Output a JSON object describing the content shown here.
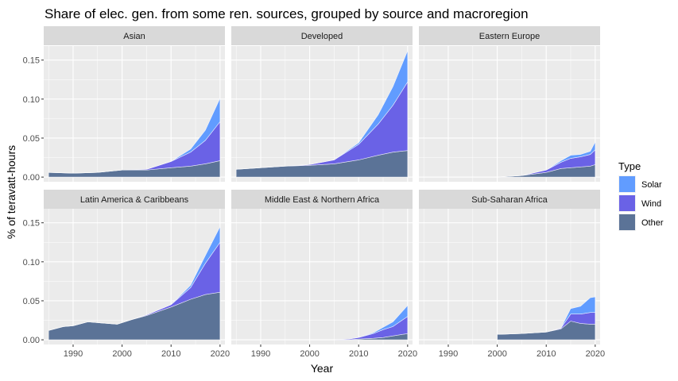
{
  "chart_data": {
    "type": "area",
    "title": "Share of elec. gen. from some ren. sources, grouped by source and macroregion",
    "xlabel": "Year",
    "ylabel": "% of teravatt-hours",
    "xlim": [
      1984,
      2021
    ],
    "ylim": [
      -0.006,
      0.168
    ],
    "x_ticks": [
      1990,
      2000,
      2010,
      2020
    ],
    "y_ticks": [
      0.0,
      0.05,
      0.1,
      0.15
    ],
    "y_tick_labels": [
      "0.00",
      "0.05",
      "0.10",
      "0.15"
    ],
    "stacked": true,
    "grid": true,
    "legend": {
      "title": "Type",
      "position": "right",
      "entries": [
        {
          "name": "Solar",
          "color": "#619CFF"
        },
        {
          "name": "Wind",
          "color": "#6A62E6"
        },
        {
          "name": "Other",
          "color": "#5B7397"
        }
      ]
    },
    "colors": {
      "Solar": "#619CFF",
      "Wind": "#6A62E6",
      "Other": "#5B7397",
      "panel_bg": "#EBEBEB",
      "strip_bg": "#D9D9D9"
    },
    "panels": [
      {
        "name": "Asian",
        "x": [
          1985,
          1990,
          1995,
          2000,
          2005,
          2010,
          2014,
          2017,
          2020
        ],
        "series": [
          {
            "name": "Other",
            "values": [
              0.006,
              0.005,
              0.006,
              0.009,
              0.009,
              0.012,
              0.014,
              0.017,
              0.021
            ]
          },
          {
            "name": "Wind",
            "values": [
              0,
              0,
              0,
              0,
              0.001,
              0.008,
              0.018,
              0.03,
              0.05
            ]
          },
          {
            "name": "Solar",
            "values": [
              0,
              0,
              0,
              0,
              0,
              0,
              0.004,
              0.013,
              0.03
            ]
          }
        ]
      },
      {
        "name": "Developed",
        "x": [
          1985,
          1990,
          1995,
          2000,
          2005,
          2010,
          2014,
          2017,
          2020
        ],
        "series": [
          {
            "name": "Other",
            "values": [
              0.01,
              0.012,
              0.014,
              0.015,
              0.017,
              0.022,
              0.028,
              0.032,
              0.034
            ]
          },
          {
            "name": "Wind",
            "values": [
              0,
              0,
              0,
              0.001,
              0.005,
              0.02,
              0.04,
              0.06,
              0.088
            ]
          },
          {
            "name": "Solar",
            "values": [
              0,
              0,
              0,
              0,
              0,
              0.002,
              0.012,
              0.024,
              0.04
            ]
          }
        ]
      },
      {
        "name": "Eastern Europe",
        "x": [
          2000,
          2005,
          2010,
          2013,
          2015,
          2017,
          2019,
          2020
        ],
        "series": [
          {
            "name": "Other",
            "values": [
              0,
              0.002,
              0.006,
              0.011,
              0.012,
              0.013,
              0.014,
              0.016
            ]
          },
          {
            "name": "Wind",
            "values": [
              0,
              0,
              0.003,
              0.008,
              0.012,
              0.013,
              0.015,
              0.019
            ]
          },
          {
            "name": "Solar",
            "values": [
              0,
              0,
              0,
              0.002,
              0.004,
              0.003,
              0.004,
              0.01
            ]
          }
        ]
      },
      {
        "name": "Latin America & Caribbeans",
        "x": [
          1985,
          1988,
          1990,
          1993,
          1995,
          1999,
          2002,
          2005,
          2010,
          2014,
          2017,
          2020
        ],
        "series": [
          {
            "name": "Other",
            "values": [
              0.012,
              0.017,
              0.018,
              0.023,
              0.022,
              0.02,
              0.026,
              0.031,
              0.042,
              0.052,
              0.058,
              0.061
            ]
          },
          {
            "name": "Wind",
            "values": [
              0,
              0,
              0,
              0,
              0,
              0,
              0,
              0.001,
              0.003,
              0.015,
              0.04,
              0.064
            ]
          },
          {
            "name": "Solar",
            "values": [
              0,
              0,
              0,
              0,
              0,
              0,
              0,
              0,
              0,
              0.003,
              0.01,
              0.02
            ]
          }
        ]
      },
      {
        "name": "Middle East & Northern Africa",
        "x": [
          2005,
          2008,
          2010,
          2013,
          2015,
          2017,
          2020
        ],
        "series": [
          {
            "name": "Other",
            "values": [
              0,
              0,
              0.001,
              0.002,
              0.003,
              0.005,
              0.008
            ]
          },
          {
            "name": "Wind",
            "values": [
              0,
              0.001,
              0.002,
              0.006,
              0.01,
              0.012,
              0.022
            ]
          },
          {
            "name": "Solar",
            "values": [
              0,
              0,
              0,
              0.001,
              0.003,
              0.006,
              0.014
            ]
          }
        ]
      },
      {
        "name": "Sub-Saharan Africa",
        "x": [
          2000,
          2005,
          2010,
          2013,
          2015,
          2017,
          2019,
          2020
        ],
        "series": [
          {
            "name": "Other",
            "values": [
              0.007,
              0.008,
              0.01,
              0.014,
              0.024,
              0.021,
              0.02,
              0.02
            ]
          },
          {
            "name": "Wind",
            "values": [
              0,
              0,
              0,
              0.001,
              0.009,
              0.012,
              0.015,
              0.015
            ]
          },
          {
            "name": "Solar",
            "values": [
              0,
              0,
              0,
              0,
              0.007,
              0.01,
              0.019,
              0.02
            ]
          }
        ]
      }
    ]
  }
}
